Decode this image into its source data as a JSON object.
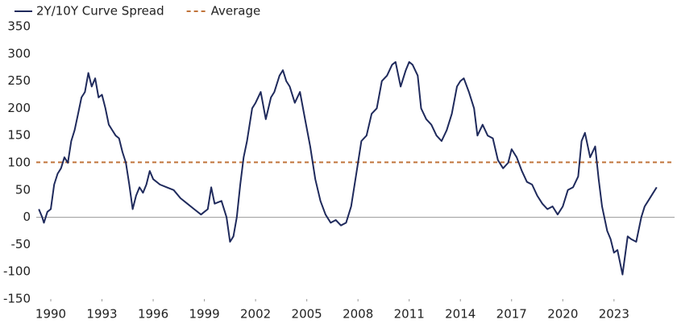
{
  "chart_data": {
    "type": "line",
    "xlim": [
      1989.15,
      2026.55
    ],
    "xticks": [
      1990,
      1993,
      1996,
      1999,
      2002,
      2005,
      2008,
      2011,
      2014,
      2017,
      2020,
      2023
    ],
    "ylim": [
      -150,
      350
    ],
    "yticks": [
      -150,
      -100,
      -50,
      0,
      50,
      100,
      150,
      200,
      250,
      300,
      350
    ],
    "grid": false,
    "legend": "top-left",
    "x": [
      1989.3,
      1989.5,
      1989.6,
      1989.8,
      1990.0,
      1990.2,
      1990.4,
      1990.6,
      1990.8,
      1991.0,
      1991.2,
      1991.4,
      1991.6,
      1991.8,
      1992.0,
      1992.2,
      1992.4,
      1992.6,
      1992.8,
      1993.0,
      1993.2,
      1993.4,
      1993.6,
      1993.8,
      1994.0,
      1994.2,
      1994.4,
      1994.6,
      1994.8,
      1995.0,
      1995.2,
      1995.4,
      1995.6,
      1995.8,
      1996.0,
      1996.4,
      1996.8,
      1997.2,
      1997.6,
      1998.0,
      1998.4,
      1998.8,
      1999.0,
      1999.2,
      1999.4,
      1999.6,
      2000.0,
      2000.3,
      2000.5,
      2000.7,
      2000.9,
      2001.1,
      2001.3,
      2001.5,
      2001.8,
      2002.0,
      2002.3,
      2002.6,
      2002.9,
      2003.1,
      2003.4,
      2003.6,
      2003.8,
      2004.0,
      2004.3,
      2004.6,
      2004.9,
      2005.2,
      2005.5,
      2005.8,
      2006.1,
      2006.4,
      2006.7,
      2007.0,
      2007.3,
      2007.6,
      2007.9,
      2008.2,
      2008.5,
      2008.8,
      2009.1,
      2009.4,
      2009.7,
      2010.0,
      2010.2,
      2010.5,
      2010.8,
      2011.0,
      2011.2,
      2011.5,
      2011.7,
      2012.0,
      2012.3,
      2012.6,
      2012.9,
      2013.2,
      2013.5,
      2013.8,
      2014.0,
      2014.2,
      2014.5,
      2014.8,
      2015.0,
      2015.3,
      2015.6,
      2015.9,
      2016.2,
      2016.5,
      2016.8,
      2017.0,
      2017.3,
      2017.6,
      2017.9,
      2018.2,
      2018.5,
      2018.8,
      2019.1,
      2019.4,
      2019.7,
      2020.0,
      2020.3,
      2020.6,
      2020.9,
      2021.1,
      2021.3,
      2021.6,
      2021.9,
      2022.1,
      2022.3,
      2022.6,
      2022.8,
      2023.0,
      2023.2,
      2023.5,
      2023.8,
      2024.0,
      2024.3,
      2024.6,
      2024.8,
      2025.0,
      2025.3,
      2025.5
    ],
    "series": [
      {
        "name": "2Y/10Y Curve Spread",
        "color": "#1f2a5c",
        "values": [
          15,
          0,
          -10,
          10,
          15,
          60,
          80,
          90,
          110,
          100,
          140,
          160,
          190,
          220,
          230,
          265,
          240,
          255,
          220,
          225,
          200,
          170,
          160,
          150,
          145,
          120,
          100,
          60,
          15,
          40,
          55,
          45,
          60,
          85,
          70,
          60,
          55,
          50,
          35,
          25,
          15,
          5,
          10,
          15,
          55,
          25,
          30,
          0,
          -45,
          -35,
          0,
          60,
          110,
          140,
          200,
          210,
          230,
          180,
          220,
          230,
          260,
          270,
          250,
          240,
          210,
          230,
          180,
          130,
          70,
          30,
          5,
          -10,
          -5,
          -15,
          -10,
          20,
          80,
          140,
          150,
          190,
          200,
          250,
          260,
          280,
          285,
          240,
          270,
          285,
          280,
          260,
          200,
          180,
          170,
          150,
          140,
          160,
          190,
          240,
          250,
          255,
          230,
          200,
          150,
          170,
          150,
          145,
          105,
          90,
          100,
          125,
          110,
          85,
          65,
          60,
          40,
          25,
          15,
          20,
          5,
          20,
          50,
          55,
          75,
          140,
          155,
          110,
          130,
          70,
          20,
          -25,
          -40,
          -65,
          -60,
          -105,
          -35,
          -40,
          -45,
          0,
          20,
          30,
          45,
          55
        ]
      }
    ],
    "reference_lines": [
      {
        "name": "Average",
        "value": 101,
        "color": "#c0733a",
        "dashed": true
      }
    ]
  }
}
